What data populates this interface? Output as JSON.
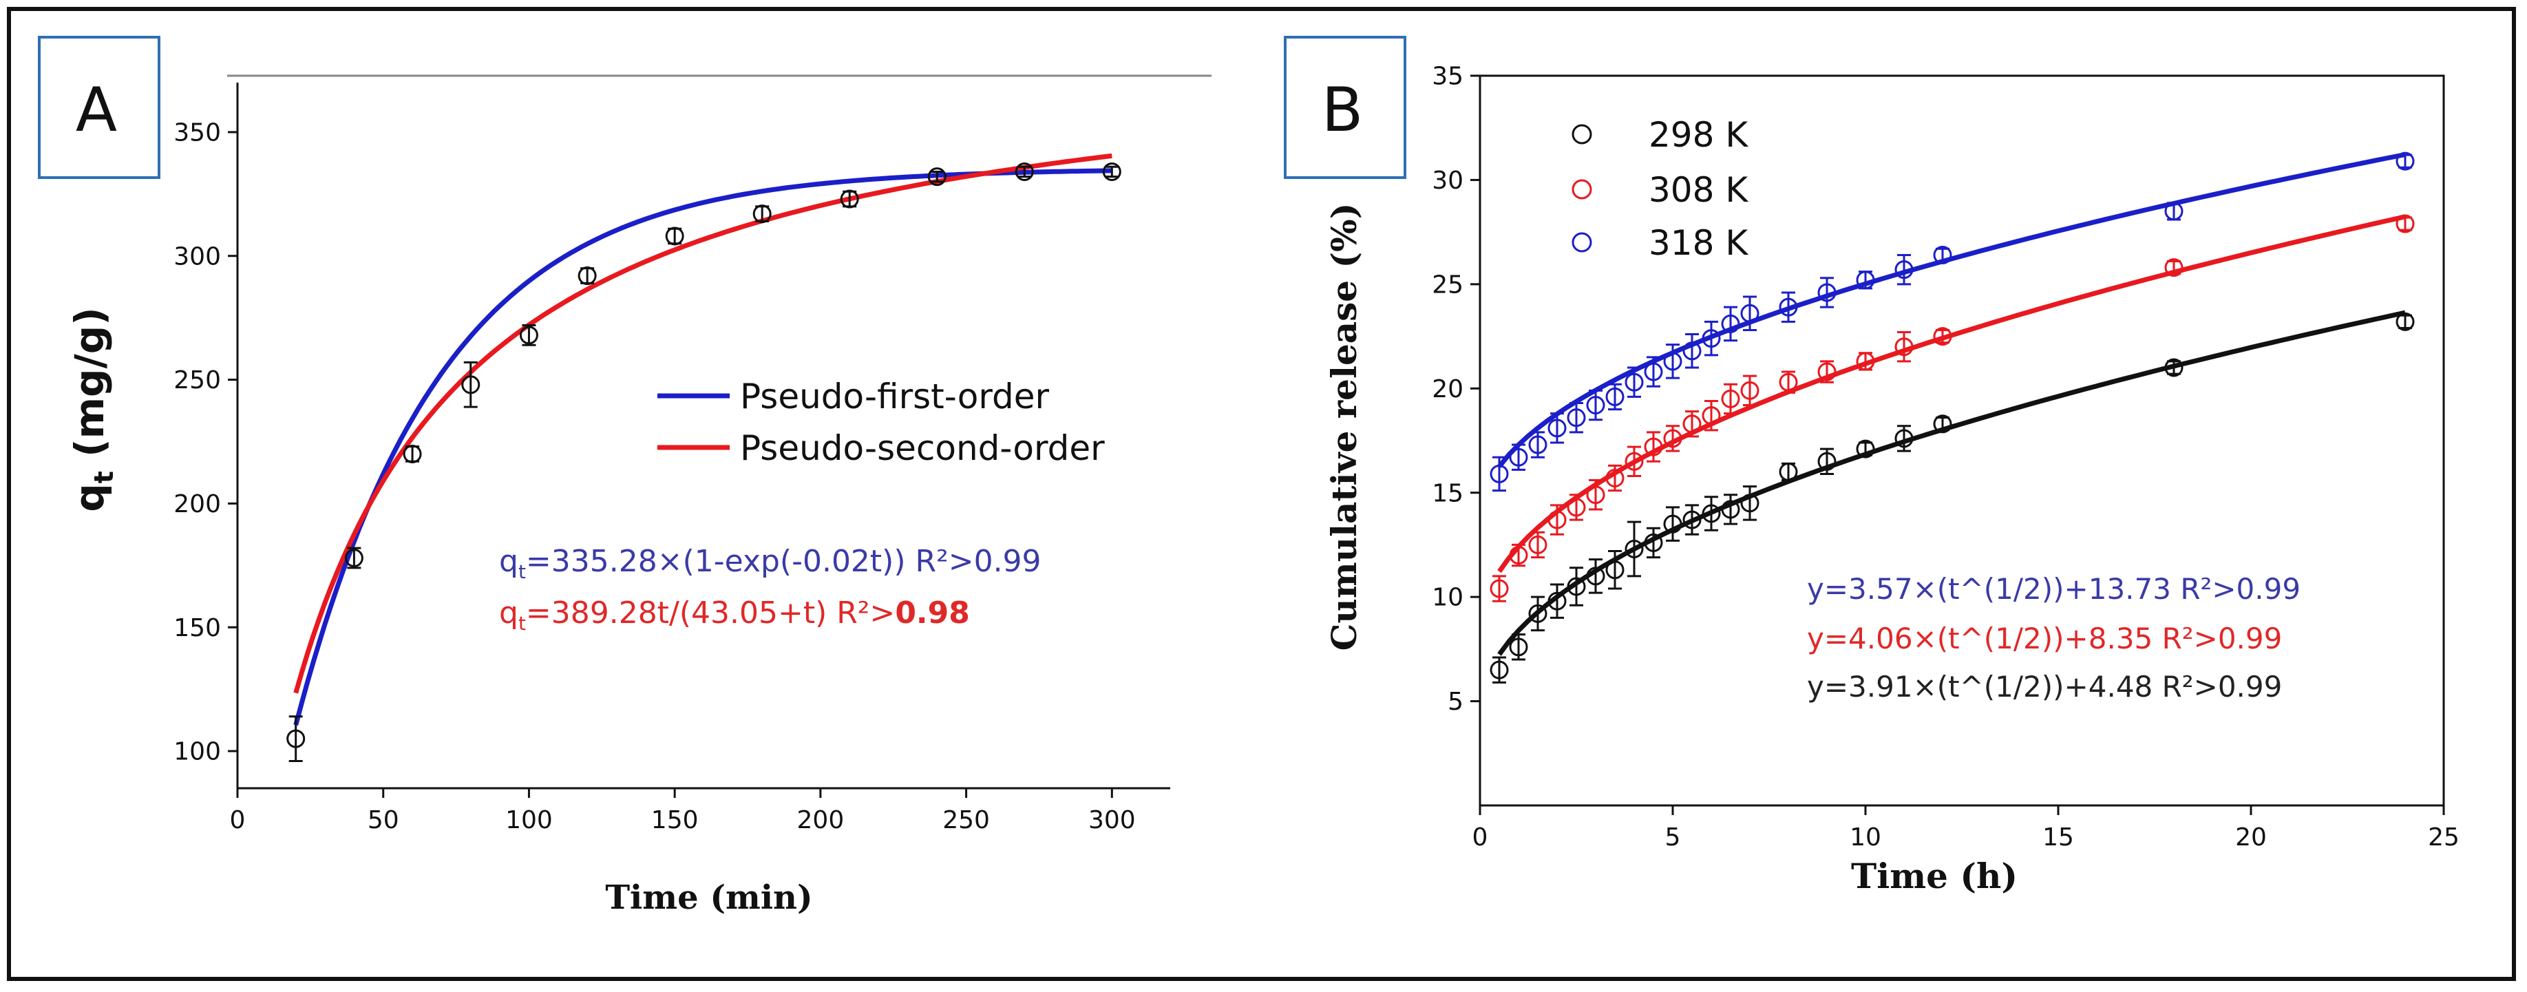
{
  "colors": {
    "black": "#111111",
    "red": "#e8191f",
    "blue": "#1b1fc8",
    "blueText": "#3a3aa8",
    "redText": "#e02828",
    "frame": "#2f6fb5"
  },
  "chart_data": [
    {
      "type": "scatter",
      "panel_label": "A",
      "xlabel": "Time (min)",
      "ylabel_main": "q",
      "ylabel_sub": "t",
      "ylabel_rest": " (mg/g)",
      "xlim": [
        0,
        320
      ],
      "ylim": [
        85,
        370
      ],
      "xticks": [
        0,
        50,
        100,
        150,
        200,
        250,
        300
      ],
      "yticks": [
        100,
        150,
        200,
        250,
        300,
        350
      ],
      "points": {
        "x": [
          20,
          40,
          60,
          80,
          100,
          120,
          150,
          180,
          210,
          240,
          270,
          300
        ],
        "y": [
          105,
          178,
          220,
          248,
          268,
          292,
          308,
          317,
          323,
          332,
          334,
          334
        ],
        "err": [
          9,
          4,
          3,
          9,
          4,
          3,
          3,
          3,
          3,
          2,
          2,
          2
        ]
      },
      "series": [
        {
          "name": "Pseudo-first-order",
          "color": "#1b1fc8",
          "qe": 335.28,
          "k": 0.02,
          "model": "pfo"
        },
        {
          "name": "Pseudo-second-order",
          "color": "#e8191f",
          "a": 389.28,
          "b": 43.05,
          "model": "pso"
        }
      ],
      "annotations": [
        {
          "pre": "q",
          "sub": "t",
          "post": "=335.28×(1-exp(-0.02t)) R²>0.99",
          "color": "#3a3aa8"
        },
        {
          "pre": "q",
          "sub": "t",
          "post": "=389.28t/(43.05+t) R²>",
          "bold": "0.98",
          "color": "#e02828"
        }
      ]
    },
    {
      "type": "scatter",
      "panel_label": "B",
      "xlabel": "Time (h)",
      "ylabel": "Cumulative release (%)",
      "xlim": [
        0,
        25
      ],
      "ylim": [
        0,
        35
      ],
      "xticks": [
        0,
        5,
        10,
        15,
        20,
        25
      ],
      "yticks": [
        5,
        10,
        15,
        20,
        25,
        30,
        35
      ],
      "series": [
        {
          "name": "298 K",
          "color": "#111111",
          "slope": 3.91,
          "intercept": 4.48,
          "x": [
            0.5,
            1,
            1.5,
            2,
            2.5,
            3,
            3.5,
            4,
            4.5,
            5,
            5.5,
            6,
            6.5,
            7,
            8,
            9,
            10,
            11,
            12,
            18,
            24
          ],
          "y": [
            6.5,
            7.6,
            9.2,
            9.8,
            10.5,
            11,
            11.3,
            12.3,
            12.6,
            13.5,
            13.7,
            14,
            14.2,
            14.5,
            16,
            16.5,
            17.1,
            17.6,
            18.3,
            21,
            23.2
          ],
          "err": [
            0.6,
            0.6,
            0.8,
            0.8,
            0.9,
            0.8,
            0.9,
            1.3,
            0.7,
            0.8,
            0.7,
            0.8,
            0.7,
            0.8,
            0.4,
            0.6,
            0.3,
            0.6,
            0.3,
            0.3,
            0.3
          ]
        },
        {
          "name": "308 K",
          "color": "#e8191f",
          "slope": 4.06,
          "intercept": 8.35,
          "x": [
            0.5,
            1,
            1.5,
            2,
            2.5,
            3,
            3.5,
            4,
            4.5,
            5,
            5.5,
            6,
            6.5,
            7,
            8,
            9,
            10,
            11,
            12,
            18,
            24
          ],
          "y": [
            10.4,
            12,
            12.5,
            13.7,
            14.3,
            14.9,
            15.7,
            16.5,
            17.2,
            17.6,
            18.3,
            18.7,
            19.5,
            19.9,
            20.3,
            20.8,
            21.3,
            22,
            22.5,
            25.8,
            27.9
          ],
          "err": [
            0.6,
            0.5,
            0.6,
            0.7,
            0.6,
            0.7,
            0.6,
            0.7,
            0.7,
            0.6,
            0.6,
            0.7,
            0.7,
            0.7,
            0.5,
            0.5,
            0.4,
            0.7,
            0.3,
            0.3,
            0.3
          ]
        },
        {
          "name": "318 K",
          "color": "#1b1fc8",
          "slope": 3.57,
          "intercept": 13.73,
          "x": [
            0.5,
            1,
            1.5,
            2,
            2.5,
            3,
            3.5,
            4,
            4.5,
            5,
            5.5,
            6,
            6.5,
            7,
            8,
            9,
            10,
            11,
            12,
            18,
            24
          ],
          "y": [
            15.9,
            16.7,
            17.3,
            18.1,
            18.6,
            19.2,
            19.6,
            20.3,
            20.8,
            21.3,
            21.8,
            22.4,
            23.1,
            23.6,
            23.9,
            24.6,
            25.2,
            25.7,
            26.4,
            28.5,
            30.9
          ],
          "err": [
            0.8,
            0.6,
            0.6,
            0.7,
            0.7,
            0.7,
            0.6,
            0.7,
            0.7,
            0.8,
            0.8,
            0.8,
            0.8,
            0.8,
            0.7,
            0.7,
            0.4,
            0.7,
            0.3,
            0.4,
            0.3
          ]
        }
      ],
      "annotations": [
        {
          "text": "y=3.57×(t^(1/2))+13.73 R²>0.99",
          "color": "#3a3aa8"
        },
        {
          "text": "y=4.06×(t^(1/2))+8.35 R²>0.99",
          "color": "#e02828"
        },
        {
          "text": "y=3.91×(t^(1/2))+4.48 R²>0.99",
          "color": "#222222"
        }
      ]
    }
  ]
}
